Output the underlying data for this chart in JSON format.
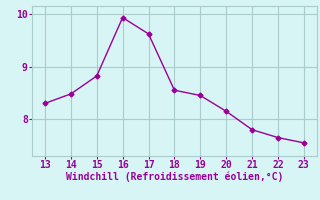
{
  "x": [
    13,
    14,
    15,
    16,
    17,
    18,
    19,
    20,
    21,
    22,
    23
  ],
  "y": [
    8.3,
    8.48,
    8.82,
    9.93,
    9.62,
    8.55,
    8.45,
    8.15,
    7.8,
    7.65,
    7.55
  ],
  "line_color": "#990099",
  "marker": "D",
  "marker_size": 2.5,
  "bg_color": "#d8f5f5",
  "grid_color": "#aacccc",
  "xlabel": "Windchill (Refroidissement éolien,°C)",
  "xlabel_color": "#990099",
  "xlabel_fontsize": 7,
  "tick_color": "#990099",
  "tick_fontsize": 7,
  "xlim": [
    12.5,
    23.5
  ],
  "ylim": [
    7.3,
    10.15
  ],
  "yticks": [
    8,
    9,
    10
  ],
  "xticks": [
    13,
    14,
    15,
    16,
    17,
    18,
    19,
    20,
    21,
    22,
    23
  ]
}
